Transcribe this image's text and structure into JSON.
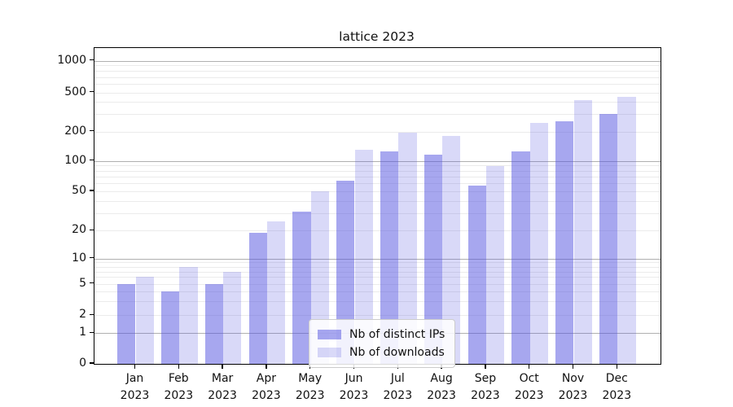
{
  "chart_data": {
    "type": "bar",
    "title": "lattice 2023",
    "year_label": "2023",
    "categories": [
      "Jan",
      "Feb",
      "Mar",
      "Apr",
      "May",
      "Jun",
      "Jul",
      "Aug",
      "Sep",
      "Oct",
      "Nov",
      "Dec"
    ],
    "series": [
      {
        "name": "Nb of distinct IPs",
        "color": "rgba(80,80,224,0.50)",
        "values": [
          5,
          4,
          5,
          19,
          31,
          64,
          125,
          115,
          57,
          125,
          255,
          300
        ]
      },
      {
        "name": "Nb of downloads",
        "color": "rgba(80,80,224,0.22)",
        "values": [
          6,
          8,
          7,
          25,
          50,
          130,
          195,
          180,
          88,
          245,
          415,
          450
        ]
      }
    ],
    "y_axis": {
      "scale": "symlog",
      "tick_labels": [
        "0",
        "1",
        "2",
        "5",
        "10",
        "20",
        "50",
        "100",
        "200",
        "500",
        "1000"
      ],
      "tick_values": [
        0,
        1,
        2,
        5,
        10,
        20,
        50,
        100,
        200,
        500,
        1000
      ],
      "major_grid_values": [
        1,
        10,
        100,
        1000
      ],
      "ylim": [
        0,
        1350
      ]
    },
    "xlabel": "",
    "ylabel": "",
    "grid": true,
    "legend_position": "lower center",
    "colors": {
      "major_grid": "#b0b0b0",
      "minor_grid": "#ebebeb",
      "spine": "#000000",
      "text": "#111111",
      "background": "#ffffff"
    }
  }
}
